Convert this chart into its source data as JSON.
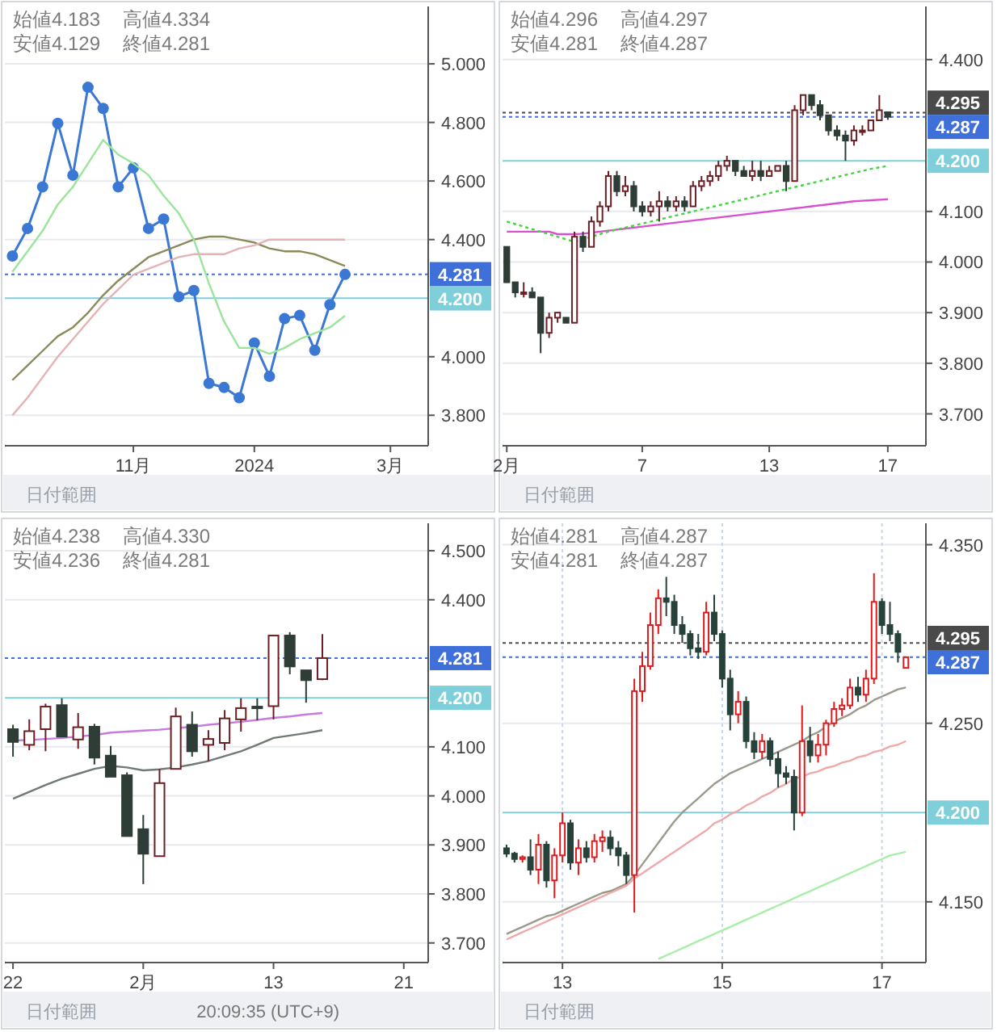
{
  "chart_data": [
    {
      "type": "line",
      "categories": [
        null,
        null,
        null,
        null,
        null,
        null,
        null,
        null,
        "11月",
        null,
        null,
        null,
        null,
        null,
        null,
        null,
        "2024",
        null,
        null,
        null,
        null,
        null,
        null,
        null,
        null,
        "3月",
        null,
        null
      ],
      "series": [
        {
          "color": "#3a78d4",
          "marker": "circle",
          "values": [
            4.344,
            4.438,
            4.58,
            4.797,
            4.62,
            4.92,
            4.848,
            4.58,
            4.645,
            4.438,
            4.47,
            4.205,
            4.226,
            3.909,
            3.895,
            3.86,
            4.047,
            3.933,
            4.13,
            4.141,
            4.022,
            4.178,
            4.281,
            null,
            null,
            null,
            null,
            null
          ]
        },
        {
          "color": "#8c8a5a",
          "values": [
            3.92,
            3.97,
            4.02,
            4.07,
            4.1,
            4.15,
            4.21,
            4.26,
            4.3,
            4.34,
            4.36,
            4.38,
            4.4,
            4.41,
            4.41,
            4.4,
            4.39,
            4.37,
            4.36,
            4.36,
            4.35,
            4.33,
            4.31,
            null,
            null,
            null,
            null,
            null
          ]
        },
        {
          "color": "#9be59b",
          "values": [
            4.29,
            4.36,
            4.43,
            4.52,
            4.58,
            4.66,
            4.74,
            4.69,
            4.66,
            4.62,
            4.55,
            4.49,
            4.4,
            4.25,
            4.12,
            4.03,
            4.03,
            4.01,
            4.03,
            4.06,
            4.08,
            4.1,
            4.14,
            null,
            null,
            null,
            null,
            null
          ]
        },
        {
          "color": "#e3b3b3",
          "values": [
            3.8,
            3.86,
            3.93,
            4.0,
            4.06,
            4.12,
            4.18,
            4.23,
            4.28,
            4.3,
            4.32,
            4.34,
            4.35,
            4.35,
            4.35,
            4.37,
            4.38,
            4.4,
            4.4,
            4.4,
            4.4,
            4.4,
            4.4,
            null,
            null,
            null,
            null,
            null
          ]
        }
      ],
      "ylim": [
        3.696,
        5.196
      ],
      "yticks": [
        {
          "value": 3.8,
          "label": "3.800"
        },
        {
          "value": 4.0,
          "label": "4.000"
        },
        {
          "value": 4.4,
          "label": "4.400"
        },
        {
          "value": 4.6,
          "label": "4.600"
        },
        {
          "value": 4.8,
          "label": "4.800"
        },
        {
          "value": 5.0,
          "label": "5.000"
        }
      ],
      "grid": "y",
      "ref_lines": [
        {
          "axis": "y",
          "value": 4.281,
          "label": "4.281",
          "color": "#3f6fd8",
          "line_style": "dotted"
        },
        {
          "axis": "y",
          "value": 4.2,
          "label": "4.200",
          "color": "#7fcfdb",
          "line_style": "solid"
        }
      ],
      "annotations": [
        "始値4.183",
        "高値4.334",
        "安値4.129",
        "終値4.281",
        "日付範囲"
      ]
    },
    {
      "type": "candlestick",
      "categories": [
        "2月",
        null,
        null,
        null,
        null,
        null,
        null,
        null,
        null,
        null,
        null,
        null,
        null,
        null,
        null,
        null,
        "7",
        null,
        null,
        null,
        null,
        null,
        null,
        null,
        null,
        null,
        null,
        null,
        null,
        null,
        null,
        "13",
        null,
        null,
        null,
        null,
        null,
        null,
        null,
        null,
        null,
        null,
        null,
        null,
        null,
        "17",
        null,
        null,
        null,
        null
      ],
      "colors": [
        "#2e3d35",
        "#2e3d35",
        "#6b1f24",
        "#2e3d35",
        "#2e3d35",
        "#6b1f24",
        "#6b1f24",
        "#2e3d35",
        "#6b1f24",
        "#2e3d35",
        "#6b1f24",
        "#6b1f24",
        "#6b1f24",
        "#2e3d35",
        "#6b1f24",
        "#2e3d35",
        "#2e3d35",
        "#6b1f24",
        "#6b1f24",
        "#2e3d35",
        "#6b1f24",
        "#2e3d35",
        "#6b1f24",
        "#6b1f24",
        "#6b1f24",
        "#6b1f24",
        "#6b1f24",
        "#2e3d35",
        "#2e3d35",
        "#6b1f24",
        "#2e3d35",
        "#6b1f24",
        "#6b1f24",
        "#2e3d35",
        "#6b1f24",
        "#6b1f24",
        "#2e3d35",
        "#2e3d35",
        "#2e3d35",
        "#2e3d35",
        "#2e3d35",
        "#6b1f24",
        "#6b1f24",
        "#6b1f24",
        "#6b1f24",
        "#2e3d35",
        null,
        null,
        null,
        null
      ],
      "ohlc": [
        [
          4.03,
          4.03,
          3.96,
          3.96
        ],
        [
          3.96,
          3.96,
          3.93,
          3.94
        ],
        [
          3.94,
          3.96,
          3.93,
          3.94
        ],
        [
          3.94,
          3.95,
          3.93,
          3.93
        ],
        [
          3.93,
          3.93,
          3.82,
          3.86
        ],
        [
          3.86,
          3.9,
          3.85,
          3.89
        ],
        [
          3.89,
          3.9,
          3.88,
          3.9
        ],
        [
          3.89,
          3.89,
          3.88,
          3.88
        ],
        [
          3.88,
          4.06,
          3.88,
          4.05
        ],
        [
          4.05,
          4.06,
          4.02,
          4.03
        ],
        [
          4.03,
          4.09,
          4.03,
          4.08
        ],
        [
          4.08,
          4.12,
          4.07,
          4.11
        ],
        [
          4.11,
          4.18,
          4.1,
          4.17
        ],
        [
          4.17,
          4.18,
          4.13,
          4.14
        ],
        [
          4.14,
          4.17,
          4.13,
          4.15
        ],
        [
          4.15,
          4.16,
          4.1,
          4.11
        ],
        [
          4.11,
          4.12,
          4.09,
          4.1
        ],
        [
          4.1,
          4.12,
          4.09,
          4.11
        ],
        [
          4.11,
          4.14,
          4.08,
          4.12
        ],
        [
          4.12,
          4.13,
          4.1,
          4.11
        ],
        [
          4.11,
          4.13,
          4.1,
          4.12
        ],
        [
          4.12,
          4.13,
          4.1,
          4.11
        ],
        [
          4.11,
          4.16,
          4.11,
          4.15
        ],
        [
          4.15,
          4.17,
          4.14,
          4.16
        ],
        [
          4.16,
          4.18,
          4.15,
          4.17
        ],
        [
          4.17,
          4.2,
          4.16,
          4.19
        ],
        [
          4.19,
          4.21,
          4.18,
          4.2
        ],
        [
          4.2,
          4.2,
          4.17,
          4.18
        ],
        [
          4.18,
          4.19,
          4.17,
          4.17
        ],
        [
          4.17,
          4.2,
          4.16,
          4.18
        ],
        [
          4.18,
          4.2,
          4.16,
          4.17
        ],
        [
          4.17,
          4.19,
          4.17,
          4.18
        ],
        [
          4.18,
          4.19,
          4.18,
          4.19
        ],
        [
          4.19,
          4.2,
          4.14,
          4.16
        ],
        [
          4.16,
          4.31,
          4.16,
          4.3
        ],
        [
          4.3,
          4.33,
          4.29,
          4.33
        ],
        [
          4.33,
          4.33,
          4.3,
          4.31
        ],
        [
          4.31,
          4.32,
          4.28,
          4.29
        ],
        [
          4.29,
          4.29,
          4.25,
          4.26
        ],
        [
          4.26,
          4.27,
          4.24,
          4.25
        ],
        [
          4.25,
          4.26,
          4.2,
          4.24
        ],
        [
          4.24,
          4.27,
          4.23,
          4.26
        ],
        [
          4.26,
          4.27,
          4.25,
          4.26
        ],
        [
          4.26,
          4.28,
          4.26,
          4.28
        ],
        [
          4.28,
          4.33,
          4.28,
          4.3
        ],
        [
          4.296,
          4.297,
          4.281,
          4.287
        ],
        null,
        null,
        null,
        null
      ],
      "series": [
        {
          "type": "line",
          "color": "#d94fd0",
          "values": [
            4.06,
            4.06,
            4.06,
            4.06,
            4.06,
            4.06,
            4.055,
            4.055,
            4.055,
            4.056,
            4.058,
            4.06,
            4.062,
            4.064,
            4.066,
            4.068,
            4.07,
            4.072,
            4.074,
            4.076,
            4.078,
            4.08,
            4.082,
            4.084,
            4.086,
            4.088,
            4.09,
            4.092,
            4.094,
            4.096,
            4.098,
            4.1,
            4.102,
            4.104,
            4.106,
            4.108,
            4.11,
            4.112,
            4.114,
            4.116,
            4.118,
            4.12,
            4.121,
            4.122,
            4.123,
            4.124,
            null,
            null,
            null,
            null
          ]
        },
        {
          "type": "line",
          "color": "#3fd63f",
          "line_style": "dotted",
          "values": [
            4.08,
            4.075,
            4.07,
            4.065,
            4.06,
            4.055,
            4.05,
            4.045,
            4.04,
            4.045,
            4.05,
            4.055,
            4.06,
            4.064,
            4.068,
            4.072,
            4.076,
            4.08,
            4.084,
            4.088,
            4.092,
            4.096,
            4.1,
            4.104,
            4.108,
            4.112,
            4.116,
            4.12,
            4.124,
            4.128,
            4.132,
            4.136,
            4.14,
            4.144,
            4.148,
            4.152,
            4.156,
            4.16,
            4.164,
            4.168,
            4.172,
            4.176,
            4.18,
            4.184,
            4.187,
            4.19,
            null,
            null,
            null,
            null
          ]
        }
      ],
      "ylim": [
        3.637,
        4.505
      ],
      "yticks": [
        {
          "value": 3.7,
          "label": "3.700"
        },
        {
          "value": 3.8,
          "label": "3.800"
        },
        {
          "value": 3.9,
          "label": "3.900"
        },
        {
          "value": 4.0,
          "label": "4.000"
        },
        {
          "value": 4.1,
          "label": "4.100"
        },
        {
          "value": 4.4,
          "label": "4.400"
        }
      ],
      "grid": "y",
      "ref_lines": [
        {
          "axis": "y",
          "value": 4.295,
          "label": "4.295",
          "color": "#4a4a4a",
          "line_style": "dotted"
        },
        {
          "axis": "y",
          "value": 4.287,
          "label": "4.287",
          "color": "#3f6fd8",
          "line_style": "dotted"
        },
        {
          "axis": "y",
          "value": 4.2,
          "label": "4.200",
          "color": "#7fcfdb",
          "line_style": "solid"
        }
      ],
      "annotations": [
        "始値4.296",
        "高値4.297",
        "安値4.281",
        "終値4.287",
        "日付範囲"
      ]
    },
    {
      "type": "candlestick",
      "categories": [
        "22",
        null,
        null,
        null,
        null,
        null,
        null,
        null,
        "2月",
        null,
        null,
        null,
        null,
        null,
        null,
        null,
        "13",
        null,
        null,
        null,
        null,
        null,
        null,
        null,
        "21",
        null
      ],
      "colors": [
        "#2e3d35",
        "#6b1f24",
        "#6b1f24",
        "#2e3d35",
        "#6b1f24",
        "#2e3d35",
        "#2e3d35",
        "#2e3d35",
        "#2e3d35",
        "#6b1f24",
        "#6b1f24",
        "#2e3d35",
        "#6b1f24",
        "#6b1f24",
        "#6b1f24",
        "#2e3d35",
        "#6b1f24",
        "#2e3d35",
        "#2e3d35",
        "#6b1f24",
        null,
        null,
        null,
        null,
        null,
        null
      ],
      "ohlc": [
        [
          4.136,
          4.145,
          4.08,
          4.11
        ],
        [
          4.104,
          4.156,
          4.093,
          4.132
        ],
        [
          4.136,
          4.188,
          4.091,
          4.182
        ],
        [
          4.185,
          4.199,
          4.12,
          4.121
        ],
        [
          4.115,
          4.169,
          4.096,
          4.14
        ],
        [
          4.141,
          4.147,
          4.064,
          4.078
        ],
        [
          4.082,
          4.102,
          4.039,
          4.039
        ],
        [
          4.042,
          4.048,
          3.918,
          3.918
        ],
        [
          3.932,
          3.961,
          3.82,
          3.882
        ],
        [
          3.877,
          4.055,
          3.877,
          4.026
        ],
        [
          4.055,
          4.18,
          4.055,
          4.162
        ],
        [
          4.145,
          4.172,
          4.08,
          4.091
        ],
        [
          4.104,
          4.134,
          4.071,
          4.116
        ],
        [
          4.108,
          4.175,
          4.093,
          4.158
        ],
        [
          4.156,
          4.199,
          4.131,
          4.179
        ],
        [
          4.182,
          4.199,
          4.154,
          4.18
        ],
        [
          4.183,
          4.327,
          4.156,
          4.327
        ],
        [
          4.327,
          4.334,
          4.248,
          4.264
        ],
        [
          4.256,
          4.256,
          4.19,
          4.236
        ],
        [
          4.238,
          4.33,
          4.236,
          4.281
        ],
        null,
        null,
        null,
        null,
        null,
        null
      ],
      "series": [
        {
          "type": "line",
          "color": "#6f7a72",
          "values": [
            3.994,
            4.008,
            4.022,
            4.035,
            4.045,
            4.055,
            4.061,
            4.058,
            4.052,
            4.054,
            4.058,
            4.064,
            4.071,
            4.081,
            4.091,
            4.104,
            4.118,
            4.123,
            4.128,
            4.134,
            null,
            null,
            null,
            null,
            null,
            null
          ]
        },
        {
          "type": "line",
          "color": "#c77be0",
          "values": [
            4.113,
            4.114,
            4.116,
            4.118,
            4.121,
            4.124,
            4.129,
            4.131,
            4.133,
            4.135,
            4.138,
            4.141,
            4.145,
            4.148,
            4.151,
            4.155,
            4.159,
            4.162,
            4.166,
            4.169,
            null,
            null,
            null,
            null,
            null,
            null
          ]
        }
      ],
      "ylim": [
        3.66,
        4.556
      ],
      "yticks": [
        {
          "value": 3.7,
          "label": "3.700"
        },
        {
          "value": 3.8,
          "label": "3.800"
        },
        {
          "value": 3.9,
          "label": "3.900"
        },
        {
          "value": 4.0,
          "label": "4.000"
        },
        {
          "value": 4.1,
          "label": "4.100"
        },
        {
          "value": 4.4,
          "label": "4.400"
        },
        {
          "value": 4.5,
          "label": "4.500"
        }
      ],
      "grid": "y",
      "ref_lines": [
        {
          "axis": "y",
          "value": 4.281,
          "label": "4.281",
          "color": "#3f6fd8",
          "line_style": "dotted"
        },
        {
          "axis": "y",
          "value": 4.2,
          "label": "4.200",
          "color": "#7fcfdb",
          "line_style": "solid"
        }
      ],
      "annotations": [
        "始値4.238",
        "高値4.330",
        "安値4.236",
        "終値4.281",
        "日付範囲",
        "20:09:35 (UTC+9)"
      ]
    },
    {
      "type": "candlestick",
      "categories": [
        null,
        null,
        null,
        null,
        null,
        null,
        null,
        "13",
        null,
        null,
        null,
        null,
        null,
        null,
        null,
        null,
        null,
        null,
        null,
        null,
        null,
        null,
        null,
        null,
        null,
        null,
        null,
        "15",
        null,
        null,
        null,
        null,
        null,
        null,
        null,
        null,
        null,
        null,
        null,
        null,
        null,
        null,
        null,
        null,
        null,
        null,
        null,
        "17",
        null,
        null,
        null,
        null,
        null
      ],
      "colors": [
        "#26423a",
        "#26423a",
        "#e0191b",
        "#26423a",
        "#e0191b",
        "#26423a",
        "#e0191b",
        "#e0191b",
        "#26423a",
        "#e0191b",
        "#26423a",
        "#e0191b",
        "#e0191b",
        "#26423a",
        "#26423a",
        "#26423a",
        "#e0191b",
        "#e0191b",
        "#e0191b",
        "#e0191b",
        "#26423a",
        "#26423a",
        "#26423a",
        "#26423a",
        "#26423a",
        "#e0191b",
        "#26423a",
        "#26423a",
        "#26423a",
        "#e0191b",
        "#26423a",
        "#26423a",
        "#e0191b",
        "#26423a",
        "#26423a",
        "#26423a",
        "#26423a",
        "#e0191b",
        "#26423a",
        "#e0191b",
        "#e0191b",
        "#e0191b",
        "#e0191b",
        "#e0191b",
        "#26423a",
        "#e0191b",
        "#e0191b",
        "#26423a",
        "#26423a",
        "#26423a",
        "#e0191b",
        null,
        null
      ],
      "ohlc": [
        [
          4.18,
          4.182,
          4.175,
          4.177
        ],
        [
          4.177,
          4.178,
          4.172,
          4.174
        ],
        [
          4.174,
          4.176,
          4.172,
          4.175
        ],
        [
          4.175,
          4.185,
          4.165,
          4.168
        ],
        [
          4.168,
          4.188,
          4.16,
          4.182
        ],
        [
          4.182,
          4.184,
          4.158,
          4.162
        ],
        [
          4.162,
          4.18,
          4.152,
          4.176
        ],
        [
          4.176,
          4.2,
          4.172,
          4.194
        ],
        [
          4.194,
          4.196,
          4.168,
          4.172
        ],
        [
          4.172,
          4.185,
          4.165,
          4.18
        ],
        [
          4.18,
          4.184,
          4.172,
          4.175
        ],
        [
          4.175,
          4.188,
          4.172,
          4.184
        ],
        [
          4.184,
          4.19,
          4.178,
          4.186
        ],
        [
          4.186,
          4.19,
          4.176,
          4.18
        ],
        [
          4.18,
          4.184,
          4.17,
          4.176
        ],
        [
          4.176,
          4.178,
          4.16,
          4.165
        ],
        [
          4.165,
          4.275,
          4.144,
          4.268
        ],
        [
          4.268,
          4.29,
          4.262,
          4.282
        ],
        [
          4.282,
          4.312,
          4.28,
          4.305
        ],
        [
          4.305,
          4.325,
          4.3,
          4.32
        ],
        [
          4.32,
          4.332,
          4.31,
          4.318
        ],
        [
          4.318,
          4.322,
          4.3,
          4.305
        ],
        [
          4.305,
          4.31,
          4.295,
          4.3
        ],
        [
          4.3,
          4.302,
          4.288,
          4.292
        ],
        [
          4.292,
          4.3,
          4.286,
          4.29
        ],
        [
          4.29,
          4.318,
          4.288,
          4.312
        ],
        [
          4.312,
          4.322,
          4.296,
          4.3
        ],
        [
          4.3,
          4.302,
          4.27,
          4.275
        ],
        [
          4.275,
          4.28,
          4.246,
          4.255
        ],
        [
          4.255,
          4.268,
          4.25,
          4.262
        ],
        [
          4.262,
          4.265,
          4.236,
          4.24
        ],
        [
          4.24,
          4.245,
          4.23,
          4.234
        ],
        [
          4.234,
          4.244,
          4.23,
          4.24
        ],
        [
          4.24,
          4.242,
          4.226,
          4.23
        ],
        [
          4.23,
          4.234,
          4.214,
          4.222
        ],
        [
          4.222,
          4.226,
          4.216,
          4.22
        ],
        [
          4.22,
          4.224,
          4.19,
          4.2
        ],
        [
          4.2,
          4.26,
          4.198,
          4.24
        ],
        [
          4.24,
          4.248,
          4.228,
          4.232
        ],
        [
          4.232,
          4.244,
          4.228,
          4.238
        ],
        [
          4.238,
          4.252,
          4.232,
          4.25
        ],
        [
          4.25,
          4.262,
          4.248,
          4.258
        ],
        [
          4.258,
          4.264,
          4.254,
          4.26
        ],
        [
          4.26,
          4.275,
          4.258,
          4.27
        ],
        [
          4.27,
          4.276,
          4.262,
          4.266
        ],
        [
          4.266,
          4.28,
          4.262,
          4.275
        ],
        [
          4.275,
          4.334,
          4.272,
          4.318
        ],
        [
          4.318,
          4.32,
          4.3,
          4.305
        ],
        [
          4.305,
          4.318,
          4.296,
          4.3
        ],
        [
          4.3,
          4.302,
          4.284,
          4.29
        ],
        [
          4.281,
          4.287,
          4.281,
          4.287
        ],
        null,
        null
      ],
      "series": [
        {
          "type": "line",
          "color": "#9a9a8c",
          "values": [
            4.132,
            4.134,
            4.136,
            4.138,
            4.14,
            4.142,
            4.143,
            4.145,
            4.147,
            4.149,
            4.151,
            4.153,
            4.155,
            4.156,
            4.158,
            4.16,
            4.165,
            4.171,
            4.177,
            4.183,
            4.189,
            4.195,
            4.2,
            4.204,
            4.208,
            4.212,
            4.216,
            4.219,
            4.222,
            4.224,
            4.226,
            4.228,
            4.23,
            4.232,
            4.234,
            4.236,
            4.238,
            4.24,
            4.243,
            4.245,
            4.248,
            4.251,
            4.253,
            4.255,
            4.258,
            4.26,
            4.263,
            4.265,
            4.267,
            4.269,
            4.27,
            null,
            null
          ]
        },
        {
          "type": "line",
          "color": "#f0a8a8",
          "values": [
            4.129,
            4.131,
            4.133,
            4.135,
            4.137,
            4.139,
            4.141,
            4.143,
            4.145,
            4.147,
            4.149,
            4.151,
            4.153,
            4.155,
            4.157,
            4.159,
            4.163,
            4.166,
            4.169,
            4.172,
            4.175,
            4.178,
            4.181,
            4.184,
            4.187,
            4.19,
            4.194,
            4.196,
            4.199,
            4.201,
            4.204,
            4.206,
            4.209,
            4.211,
            4.214,
            4.216,
            4.219,
            4.22,
            4.222,
            4.223,
            4.225,
            4.226,
            4.228,
            4.229,
            4.231,
            4.232,
            4.234,
            4.235,
            4.237,
            4.238,
            4.24,
            null,
            null
          ]
        },
        {
          "type": "line",
          "color": "#a8eea8",
          "values": [
            null,
            null,
            null,
            null,
            null,
            null,
            null,
            null,
            null,
            null,
            null,
            null,
            null,
            null,
            null,
            null,
            null,
            null,
            null,
            4.118,
            4.12,
            4.122,
            4.124,
            4.126,
            4.128,
            4.13,
            4.132,
            4.134,
            4.136,
            4.138,
            4.14,
            4.142,
            4.144,
            4.146,
            4.148,
            4.15,
            4.152,
            4.154,
            4.156,
            4.158,
            4.16,
            4.162,
            4.164,
            4.166,
            4.168,
            4.17,
            4.172,
            4.174,
            4.176,
            4.177,
            4.178,
            null,
            null
          ]
        }
      ],
      "ylim": [
        4.116,
        4.362
      ],
      "yticks": [
        {
          "value": 4.15,
          "label": "4.150"
        },
        {
          "value": 4.25,
          "label": "4.250"
        },
        {
          "value": 4.35,
          "label": "4.350"
        }
      ],
      "grid": true,
      "ref_lines": [
        {
          "axis": "y",
          "value": 4.295,
          "label": "4.295",
          "color": "#4a4a4a",
          "line_style": "dotted"
        },
        {
          "axis": "y",
          "value": 4.287,
          "label": "4.287",
          "color": "#3f6fd8",
          "line_style": "dotted"
        },
        {
          "axis": "y",
          "value": 4.2,
          "label": "4.200",
          "color": "#7fcfdb",
          "line_style": "solid"
        }
      ],
      "annotations": [
        "始値4.281",
        "高値4.287",
        "安値4.281",
        "終値4.287",
        "日付範囲"
      ]
    }
  ]
}
